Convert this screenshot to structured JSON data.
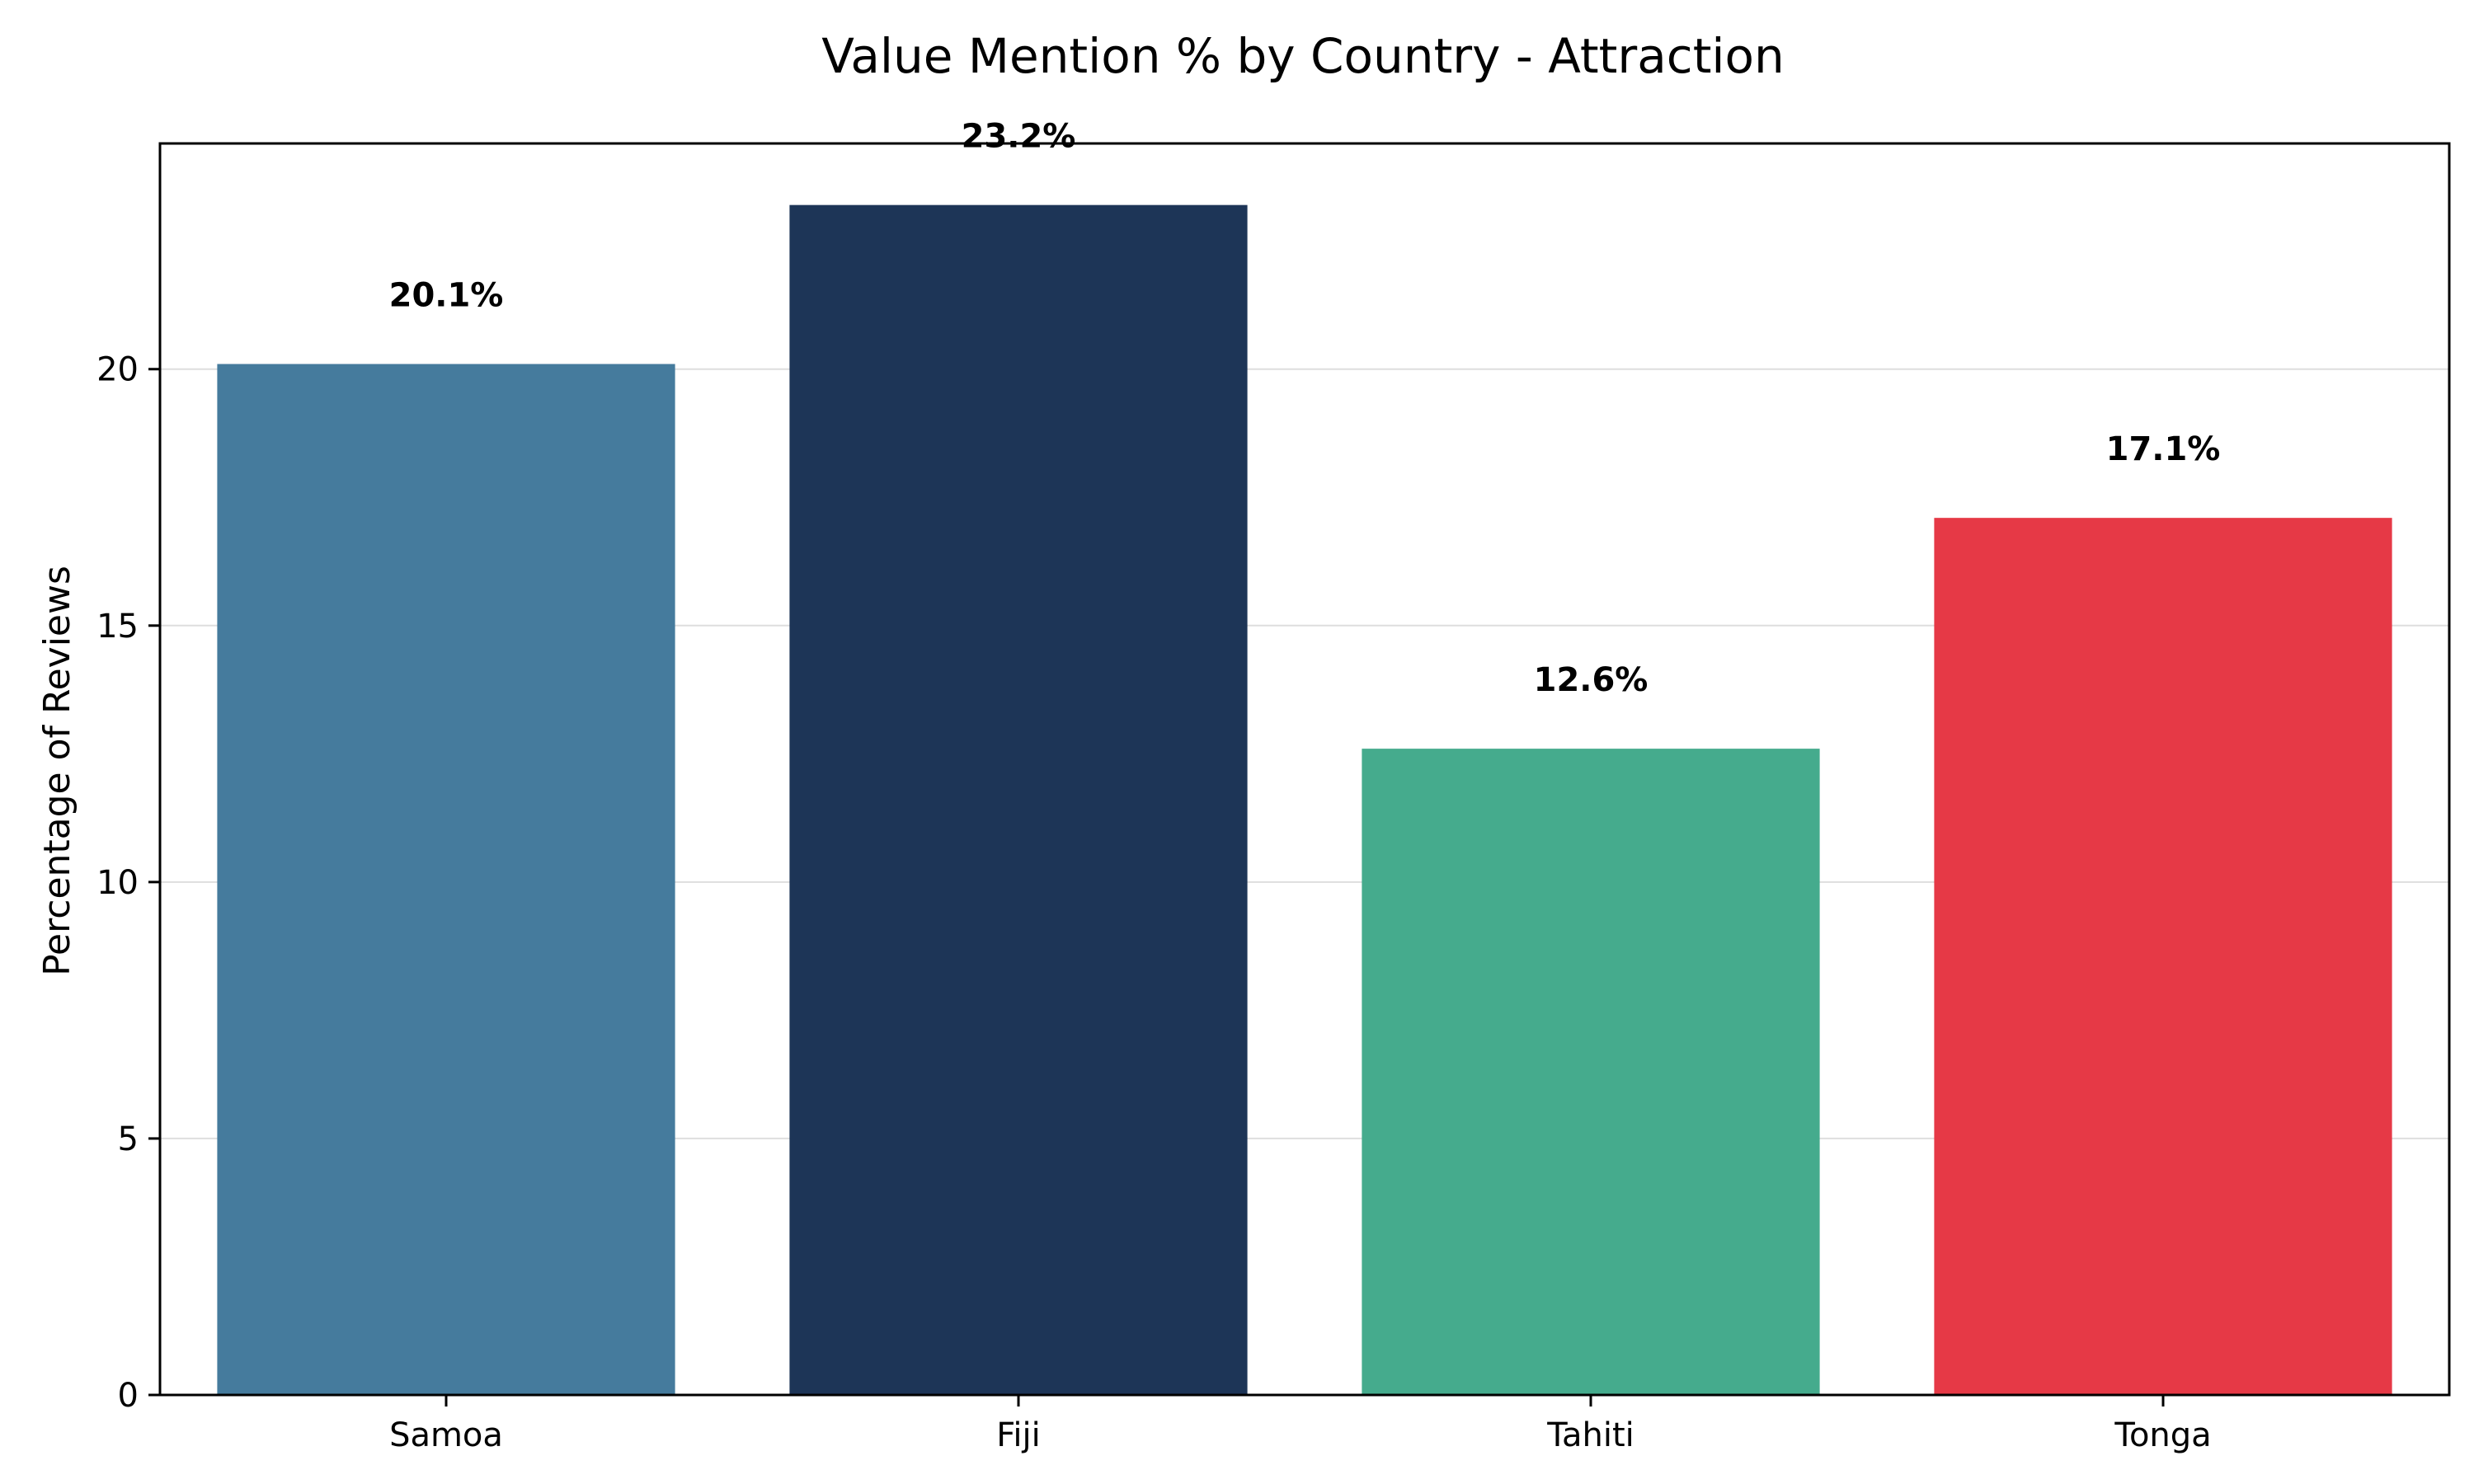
{
  "chart_data": {
    "type": "bar",
    "title": "Value Mention % by Country - Attraction",
    "xlabel": "",
    "ylabel": "Percentage of Reviews",
    "categories": [
      "Samoa",
      "Fiji",
      "Tahiti",
      "Tonga"
    ],
    "values": [
      20.1,
      23.2,
      12.6,
      17.1
    ],
    "value_labels": [
      "20.1%",
      "23.2%",
      "12.6%",
      "17.1%"
    ],
    "colors": [
      "#457b9d",
      "#1d3557",
      "#45ab8d",
      "#e63946"
    ],
    "ylim": [
      0,
      24.4
    ],
    "yticks": [
      0,
      5,
      10,
      15,
      20
    ],
    "ytick_labels": [
      "0",
      "5",
      "10",
      "15",
      "20"
    ],
    "grid": "y",
    "legend": "none"
  }
}
